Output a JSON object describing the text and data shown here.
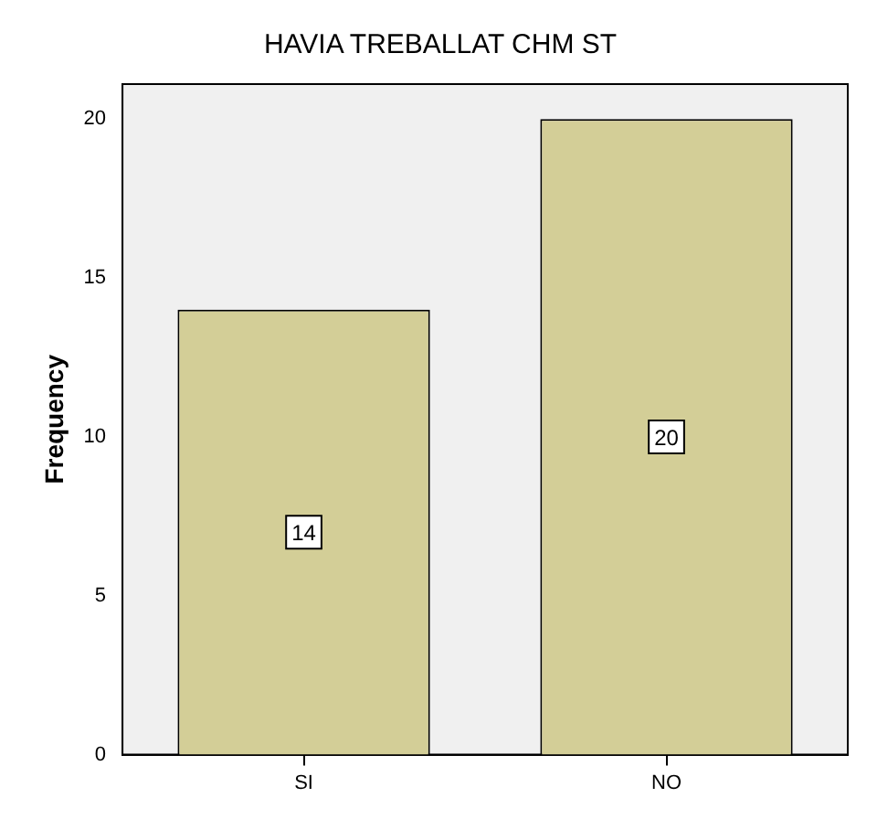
{
  "chart_data": {
    "type": "bar",
    "title": "HAVIA TREBALLAT CHM ST",
    "ylabel": "Frequency",
    "categories": [
      "SI",
      "NO"
    ],
    "values": [
      14,
      20
    ],
    "color": "#d3ce97",
    "ylim": [
      0,
      21.1
    ],
    "yticks": [
      0,
      5,
      10,
      15,
      20
    ],
    "grid": false,
    "legend": false,
    "data_labels": true
  }
}
